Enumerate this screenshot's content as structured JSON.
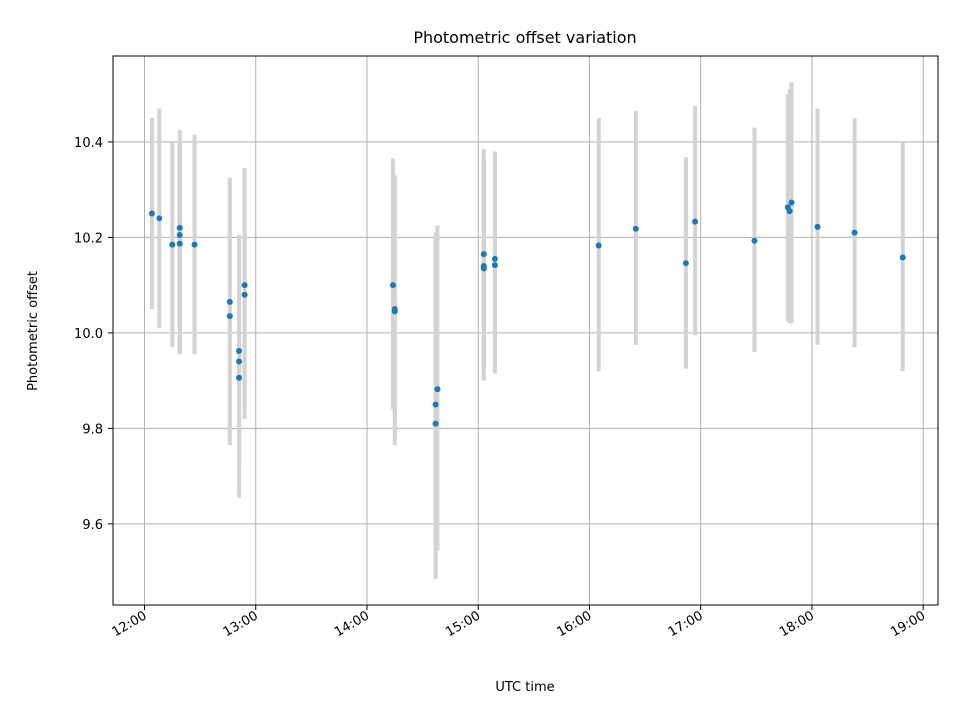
{
  "chart_data": {
    "type": "scatter",
    "title": "Photometric offset variation",
    "xlabel": "UTC time",
    "ylabel": "Photometric offset",
    "xlim": [
      "11:43",
      "19:08"
    ],
    "ylim": [
      9.43,
      10.58
    ],
    "x_ticks": [
      "12:00",
      "13:00",
      "14:00",
      "15:00",
      "16:00",
      "17:00",
      "18:00",
      "19:00"
    ],
    "y_ticks": [
      "9.6",
      "9.8",
      "10.0",
      "10.2",
      "10.4"
    ],
    "grid": true,
    "marker_color": "#1f77b4",
    "errorbar_color": "#d3d3d3",
    "points": [
      {
        "x": "12:04",
        "y": 10.25,
        "ylow": 10.05,
        "yhigh": 10.45
      },
      {
        "x": "12:08",
        "y": 10.24,
        "ylow": 10.01,
        "yhigh": 10.47
      },
      {
        "x": "12:15",
        "y": 10.185,
        "ylow": 9.97,
        "yhigh": 10.4
      },
      {
        "x": "12:19",
        "y": 10.22,
        "ylow": 9.955,
        "yhigh": 10.425
      },
      {
        "x": "12:19",
        "y": 10.205,
        "ylow": 9.96,
        "yhigh": 10.41
      },
      {
        "x": "12:19",
        "y": 10.187,
        "ylow": 9.96,
        "yhigh": 10.41
      },
      {
        "x": "12:27",
        "y": 10.185,
        "ylow": 9.955,
        "yhigh": 10.415
      },
      {
        "x": "12:46",
        "y": 10.065,
        "ylow": 9.8,
        "yhigh": 10.325
      },
      {
        "x": "12:46",
        "y": 10.035,
        "ylow": 9.765,
        "yhigh": 10.31
      },
      {
        "x": "12:51",
        "y": 9.962,
        "ylow": 9.72,
        "yhigh": 10.2
      },
      {
        "x": "12:51",
        "y": 9.94,
        "ylow": 9.675,
        "yhigh": 10.205
      },
      {
        "x": "12:51",
        "y": 9.906,
        "ylow": 9.655,
        "yhigh": 10.16
      },
      {
        "x": "12:54",
        "y": 10.1,
        "ylow": 9.855,
        "yhigh": 10.345
      },
      {
        "x": "12:54",
        "y": 10.08,
        "ylow": 9.82,
        "yhigh": 10.34
      },
      {
        "x": "14:14",
        "y": 10.1,
        "ylow": 9.84,
        "yhigh": 10.365
      },
      {
        "x": "14:15",
        "y": 10.05,
        "ylow": 9.78,
        "yhigh": 10.33
      },
      {
        "x": "14:15",
        "y": 10.045,
        "ylow": 9.765,
        "yhigh": 10.32
      },
      {
        "x": "14:37",
        "y": 9.81,
        "ylow": 9.485,
        "yhigh": 10.155
      },
      {
        "x": "14:37",
        "y": 9.85,
        "ylow": 9.495,
        "yhigh": 10.21
      },
      {
        "x": "14:38",
        "y": 9.882,
        "ylow": 9.545,
        "yhigh": 10.225
      },
      {
        "x": "15:03",
        "y": 10.165,
        "ylow": 9.925,
        "yhigh": 10.385
      },
      {
        "x": "15:03",
        "y": 10.14,
        "ylow": 9.905,
        "yhigh": 10.375
      },
      {
        "x": "15:03",
        "y": 10.135,
        "ylow": 9.9,
        "yhigh": 10.37
      },
      {
        "x": "15:09",
        "y": 10.155,
        "ylow": 9.93,
        "yhigh": 10.38
      },
      {
        "x": "15:09",
        "y": 10.142,
        "ylow": 9.915,
        "yhigh": 10.375
      },
      {
        "x": "16:05",
        "y": 10.183,
        "ylow": 9.92,
        "yhigh": 10.45
      },
      {
        "x": "16:25",
        "y": 10.218,
        "ylow": 9.975,
        "yhigh": 10.465
      },
      {
        "x": "16:52",
        "y": 10.146,
        "ylow": 9.925,
        "yhigh": 10.368
      },
      {
        "x": "16:57",
        "y": 10.233,
        "ylow": 9.995,
        "yhigh": 10.475
      },
      {
        "x": "17:29",
        "y": 10.193,
        "ylow": 9.96,
        "yhigh": 10.43
      },
      {
        "x": "17:47",
        "y": 10.263,
        "ylow": 10.025,
        "yhigh": 10.5
      },
      {
        "x": "17:48",
        "y": 10.255,
        "ylow": 10.02,
        "yhigh": 10.51
      },
      {
        "x": "17:49",
        "y": 10.273,
        "ylow": 10.02,
        "yhigh": 10.525
      },
      {
        "x": "18:03",
        "y": 10.222,
        "ylow": 9.975,
        "yhigh": 10.47
      },
      {
        "x": "18:23",
        "y": 10.21,
        "ylow": 9.97,
        "yhigh": 10.45
      },
      {
        "x": "18:49",
        "y": 10.158,
        "ylow": 9.92,
        "yhigh": 10.4
      }
    ]
  }
}
